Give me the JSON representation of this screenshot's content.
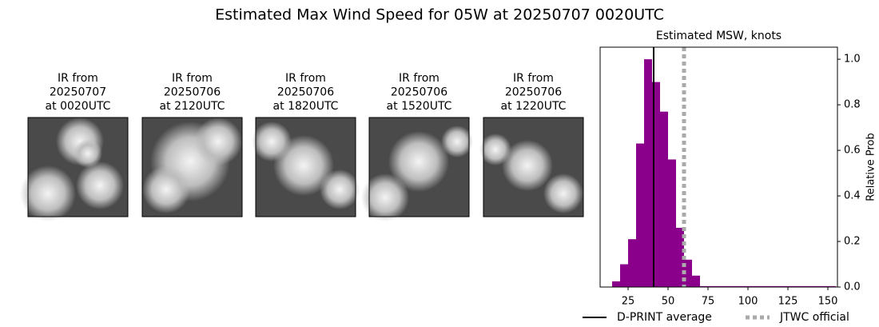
{
  "title": "Estimated Max Wind Speed for 05W at 20250707 0020UTC",
  "images": [
    {
      "lines": [
        "IR from",
        "20250707",
        "at 0020UTC"
      ]
    },
    {
      "lines": [
        "IR from",
        "20250706",
        "at 2120UTC"
      ]
    },
    {
      "lines": [
        "IR from",
        "20250706",
        "at 1820UTC"
      ]
    },
    {
      "lines": [
        "IR from",
        "20250706",
        "at 1520UTC"
      ]
    },
    {
      "lines": [
        "IR from",
        "20250706",
        "at 1220UTC"
      ]
    }
  ],
  "chart_data": {
    "type": "histogram",
    "title": "Estimated MSW, knots",
    "y_label": "Relative Prob",
    "color": "#8b008b",
    "bins": [
      15,
      20,
      25,
      30,
      35,
      40,
      45,
      50,
      55,
      60,
      65,
      70,
      75,
      80,
      85,
      90,
      95,
      100,
      105,
      110,
      115,
      120,
      125,
      130,
      135,
      140,
      145,
      150,
      155
    ],
    "values": [
      0.025,
      0.1,
      0.21,
      0.63,
      1.0,
      0.9,
      0.77,
      0.56,
      0.26,
      0.12,
      0.05,
      0.004,
      0.004,
      0.004,
      0.004,
      0.004,
      0.004,
      0.004,
      0.004,
      0.004,
      0.004,
      0.004,
      0.004,
      0.004,
      0.004,
      0.004,
      0.004,
      0.004
    ],
    "xlim": [
      7.5,
      156
    ],
    "xticks": [
      25,
      50,
      75,
      100,
      125,
      150
    ],
    "ylim": [
      0,
      1.053
    ],
    "yticks": [
      {
        "value": 0,
        "label": "0.0"
      },
      {
        "value": 0.2,
        "label": "0.2"
      },
      {
        "value": 0.4,
        "label": "0.4"
      },
      {
        "value": 0.6,
        "label": "0.6"
      },
      {
        "value": 0.8,
        "label": "0.8"
      },
      {
        "value": 1.0,
        "label": "1.0"
      }
    ],
    "y_axis_side": "right",
    "vlines": [
      {
        "name": "D-PRINT average",
        "value": 41,
        "color": "#000000",
        "style": "solid"
      },
      {
        "name": "JTWC official",
        "value": 60,
        "color": "#aaaaaa",
        "style": "dotted"
      }
    ]
  }
}
